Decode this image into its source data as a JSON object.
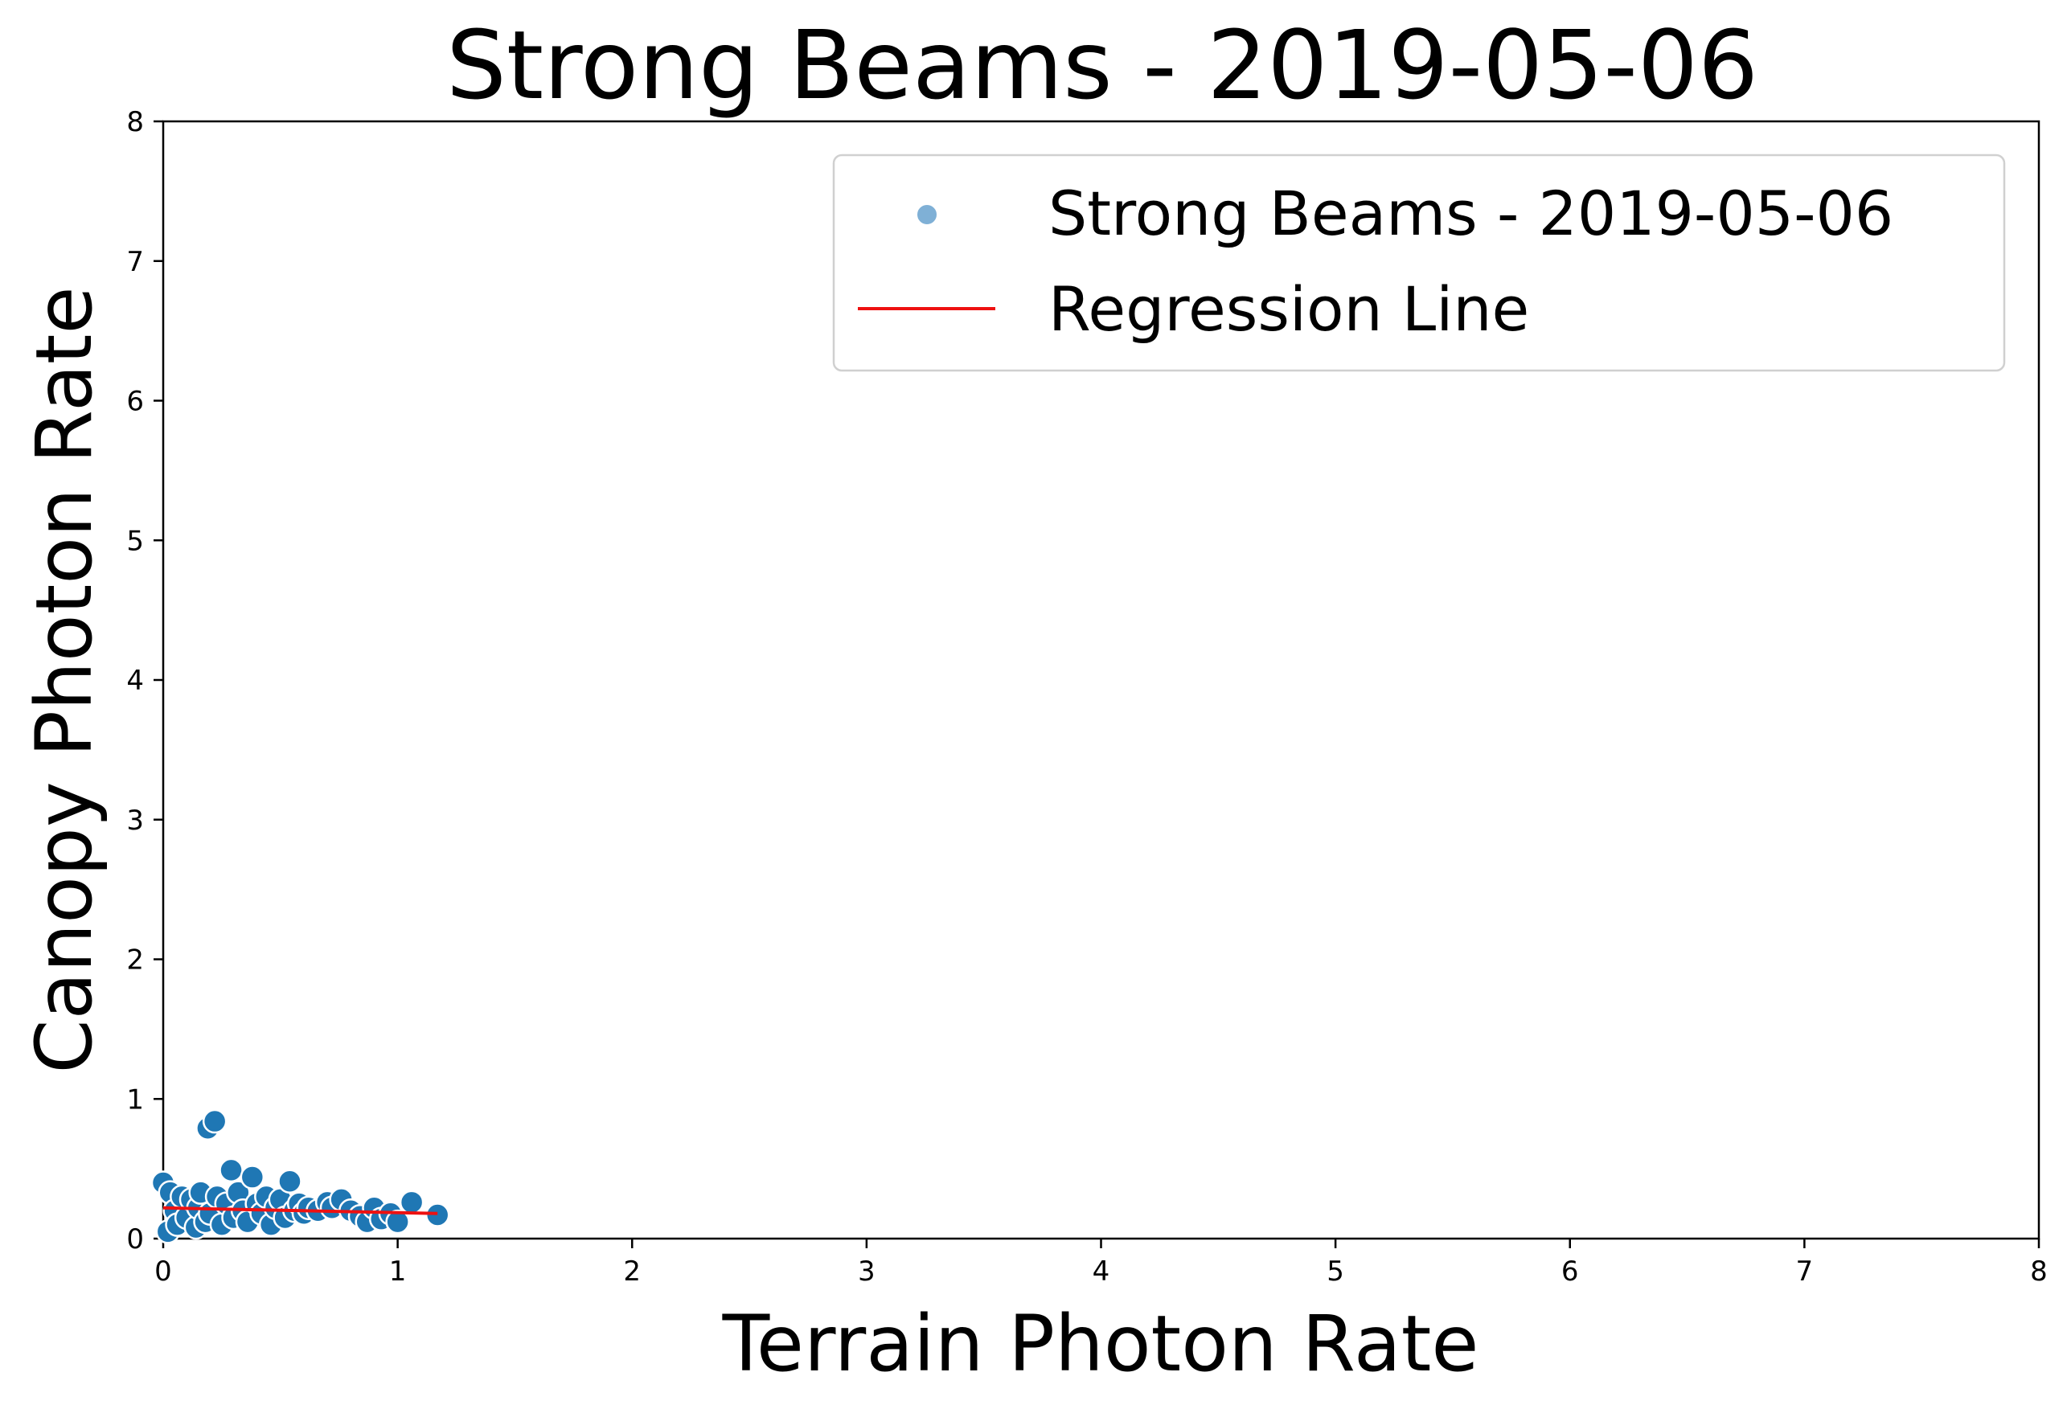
{
  "chart_data": {
    "type": "scatter",
    "title": "Strong Beams - 2019-05-06",
    "xlabel": "Terrain Photon Rate",
    "ylabel": "Canopy Photon Rate",
    "xlim": [
      0,
      8
    ],
    "ylim": [
      0,
      8
    ],
    "xticks": [
      "0",
      "1",
      "2",
      "3",
      "4",
      "5",
      "6",
      "7",
      "8"
    ],
    "yticks": [
      "0",
      "1",
      "2",
      "3",
      "4",
      "5",
      "6",
      "7",
      "8"
    ],
    "grid": false,
    "legend_position": "top-right",
    "legend": [
      {
        "label": "Strong Beams - 2019-05-06",
        "kind": "marker"
      },
      {
        "label": "Regression Line",
        "kind": "line"
      }
    ],
    "colors": {
      "points": "#1f77b4",
      "legend_marker": "#7fb0d6",
      "regression": "#ee1111",
      "axis": "#000000"
    },
    "series": [
      {
        "name": "Strong Beams - 2019-05-06",
        "points": [
          [
            0.0,
            0.4
          ],
          [
            0.02,
            0.05
          ],
          [
            0.03,
            0.33
          ],
          [
            0.05,
            0.2
          ],
          [
            0.06,
            0.1
          ],
          [
            0.08,
            0.3
          ],
          [
            0.1,
            0.15
          ],
          [
            0.12,
            0.28
          ],
          [
            0.14,
            0.08
          ],
          [
            0.15,
            0.22
          ],
          [
            0.16,
            0.33
          ],
          [
            0.18,
            0.12
          ],
          [
            0.19,
            0.79
          ],
          [
            0.2,
            0.18
          ],
          [
            0.22,
            0.84
          ],
          [
            0.23,
            0.3
          ],
          [
            0.25,
            0.1
          ],
          [
            0.27,
            0.25
          ],
          [
            0.29,
            0.49
          ],
          [
            0.3,
            0.15
          ],
          [
            0.32,
            0.33
          ],
          [
            0.34,
            0.2
          ],
          [
            0.36,
            0.12
          ],
          [
            0.38,
            0.44
          ],
          [
            0.4,
            0.25
          ],
          [
            0.42,
            0.18
          ],
          [
            0.44,
            0.3
          ],
          [
            0.46,
            0.1
          ],
          [
            0.48,
            0.22
          ],
          [
            0.5,
            0.28
          ],
          [
            0.52,
            0.15
          ],
          [
            0.54,
            0.41
          ],
          [
            0.56,
            0.2
          ],
          [
            0.58,
            0.25
          ],
          [
            0.6,
            0.18
          ],
          [
            0.62,
            0.22
          ],
          [
            0.66,
            0.2
          ],
          [
            0.7,
            0.26
          ],
          [
            0.72,
            0.22
          ],
          [
            0.76,
            0.28
          ],
          [
            0.8,
            0.2
          ],
          [
            0.84,
            0.16
          ],
          [
            0.87,
            0.12
          ],
          [
            0.9,
            0.22
          ],
          [
            0.93,
            0.14
          ],
          [
            0.97,
            0.18
          ],
          [
            1.0,
            0.12
          ],
          [
            1.06,
            0.26
          ],
          [
            1.17,
            0.17
          ]
        ]
      },
      {
        "name": "Regression Line",
        "points": [
          [
            0.0,
            0.22
          ],
          [
            1.17,
            0.18
          ]
        ]
      }
    ]
  }
}
